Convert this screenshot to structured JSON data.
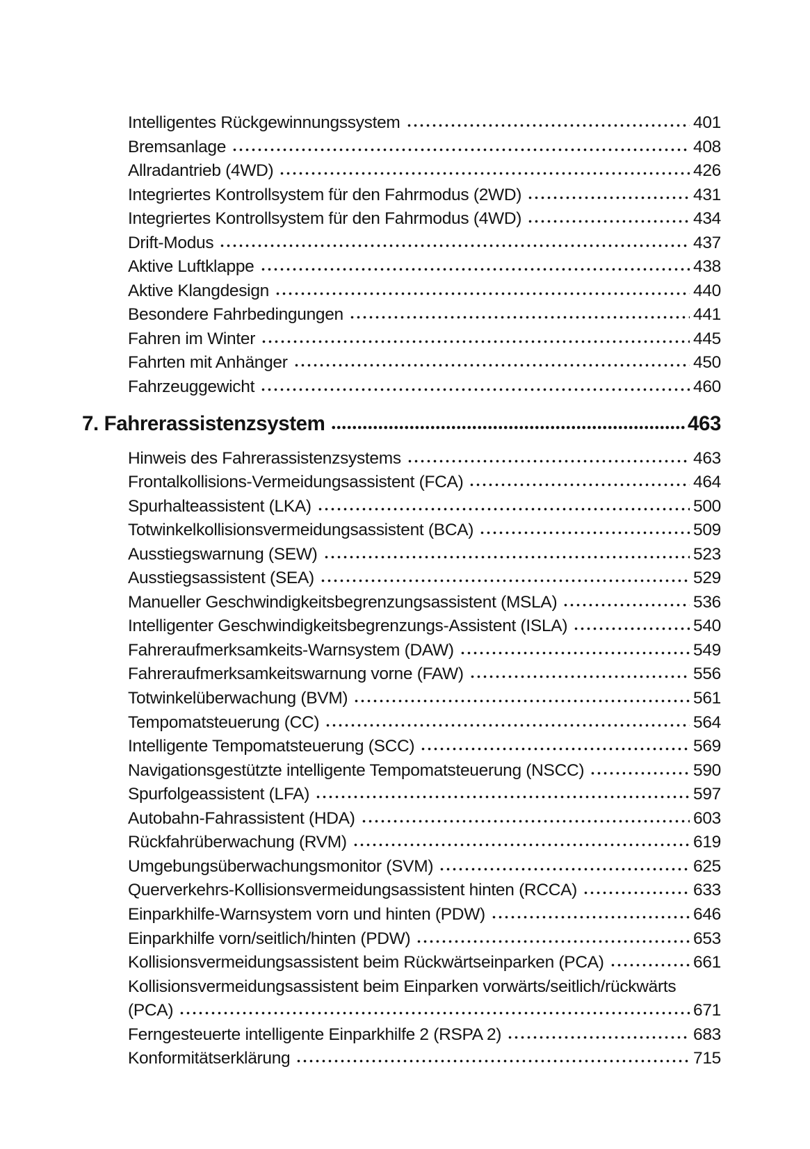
{
  "page": {
    "background_color": "#ffffff",
    "text_color": "#131313"
  },
  "toc": {
    "continued_entries": [
      {
        "title": "Intelligentes Rückgewinnungssystem",
        "page": "401"
      },
      {
        "title": "Bremsanlage",
        "page": "408"
      },
      {
        "title": "Allradantrieb (4WD)",
        "page": "426"
      },
      {
        "title": "Integriertes Kontrollsystem für den Fahrmodus (2WD)",
        "page": "431"
      },
      {
        "title": "Integriertes Kontrollsystem für den Fahrmodus (4WD)",
        "page": "434"
      },
      {
        "title": "Drift-Modus",
        "page": "437"
      },
      {
        "title": "Aktive Luftklappe",
        "page": "438"
      },
      {
        "title": "Aktive Klangdesign",
        "page": "440"
      },
      {
        "title": "Besondere Fahrbedingungen",
        "page": "441"
      },
      {
        "title": "Fahren im Winter",
        "page": "445"
      },
      {
        "title": "Fahrten mit Anhänger",
        "page": "450"
      },
      {
        "title": "Fahrzeuggewicht",
        "page": "460"
      }
    ],
    "section": {
      "label": "7. Fahrerassistenzsystem",
      "page": "463",
      "entries": [
        {
          "title": "Hinweis des Fahrerassistenzsystems",
          "page": "463"
        },
        {
          "title": "Frontalkollisions-Vermeidungsassistent (FCA)",
          "page": "464"
        },
        {
          "title": "Spurhalteassistent (LKA)",
          "page": "500"
        },
        {
          "title": "Totwinkelkollisionsvermeidungsassistent (BCA)",
          "page": "509"
        },
        {
          "title": "Ausstiegswarnung (SEW)",
          "page": "523"
        },
        {
          "title": "Ausstiegsassistent (SEA)",
          "page": "529"
        },
        {
          "title": "Manueller Geschwindigkeitsbegrenzungsassistent (MSLA)",
          "page": "536"
        },
        {
          "title": "Intelligenter Geschwindigkeitsbegrenzungs-Assistent (ISLA)",
          "page": "540"
        },
        {
          "title": "Fahreraufmerksamkeits-Warnsystem (DAW)",
          "page": "549"
        },
        {
          "title": "Fahreraufmerksamkeitswarnung vorne (FAW)",
          "page": "556"
        },
        {
          "title": "Totwinkelüberwachung (BVM)",
          "page": "561"
        },
        {
          "title": "Tempomatsteuerung (CC)",
          "page": "564"
        },
        {
          "title": "Intelligente Tempomatsteuerung (SCC)",
          "page": "569"
        },
        {
          "title": "Navigationsgestützte intelligente Tempomatsteuerung (NSCC)",
          "page": "590"
        },
        {
          "title": "Spurfolgeassistent (LFA)",
          "page": "597"
        },
        {
          "title": "Autobahn-Fahrassistent (HDA)",
          "page": "603"
        },
        {
          "title": "Rückfahrüberwachung (RVM)",
          "page": "619"
        },
        {
          "title": "Umgebungsüberwachungsmonitor (SVM)",
          "page": "625"
        },
        {
          "title": "Querverkehrs-Kollisionsvermeidungsassistent hinten (RCCA)",
          "page": "633"
        },
        {
          "title": "Einparkhilfe-Warnsystem vorn und hinten (PDW)",
          "page": "646"
        },
        {
          "title": "Einparkhilfe vorn/seitlich/hinten (PDW)",
          "page": "653"
        },
        {
          "title": "Kollisionsvermeidungsassistent beim Rückwärtseinparken (PCA)",
          "page": "661"
        },
        {
          "title": "Kollisionsvermeidungsassistent beim Einparken vorwärts/seitlich/rückwärts",
          "title_line2": "(PCA)",
          "page": "671"
        },
        {
          "title": "Ferngesteuerte intelligente Einparkhilfe 2 (RSPA 2)",
          "page": "683"
        },
        {
          "title": "Konformitätserklärung",
          "page": "715"
        }
      ]
    }
  }
}
